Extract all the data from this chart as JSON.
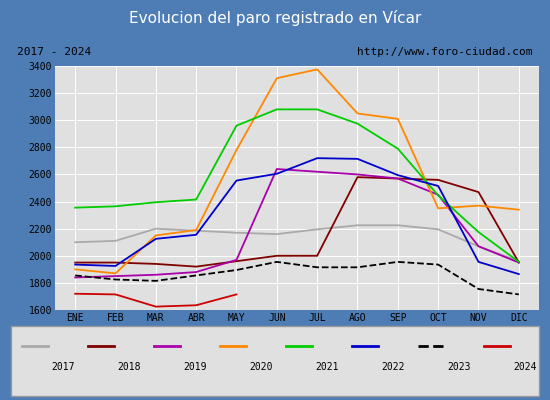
{
  "title": "Evolucion del paro registrado en Vícar",
  "subtitle_left": "2017 - 2024",
  "subtitle_right": "http://www.foro-ciudad.com",
  "x_labels": [
    "ENE",
    "FEB",
    "MAR",
    "ABR",
    "MAY",
    "JUN",
    "JUL",
    "AGO",
    "SEP",
    "OCT",
    "NOV",
    "DIC"
  ],
  "ylim": [
    1600,
    3400
  ],
  "yticks": [
    1600,
    1800,
    2000,
    2200,
    2400,
    2600,
    2800,
    3000,
    3200,
    3400
  ],
  "series": {
    "2017": {
      "color": "#aaaaaa",
      "linestyle": "-",
      "data": [
        2100,
        2110,
        2200,
        2185,
        2170,
        2160,
        2195,
        2225,
        2225,
        2195,
        2070,
        1960
      ]
    },
    "2018": {
      "color": "#800000",
      "linestyle": "-",
      "data": [
        1950,
        1950,
        1940,
        1920,
        1960,
        2000,
        2000,
        2580,
        2570,
        2560,
        2470,
        1950
      ]
    },
    "2019": {
      "color": "#aa00aa",
      "linestyle": "-",
      "data": [
        1840,
        1850,
        1860,
        1880,
        1970,
        2640,
        2620,
        2600,
        2570,
        2450,
        2070,
        1950
      ]
    },
    "2020": {
      "color": "#ff8800",
      "linestyle": "-",
      "data": [
        1900,
        1870,
        2150,
        2190,
        2780,
        3310,
        3375,
        3050,
        3010,
        2350,
        2370,
        2340
      ]
    },
    "2021": {
      "color": "#00cc00",
      "linestyle": "-",
      "data": [
        2355,
        2365,
        2395,
        2415,
        2960,
        3080,
        3080,
        2975,
        2790,
        2445,
        2175,
        1955
      ]
    },
    "2022": {
      "color": "#0000cc",
      "linestyle": "-",
      "data": [
        1935,
        1925,
        2125,
        2155,
        2555,
        2605,
        2720,
        2715,
        2595,
        2515,
        1955,
        1865
      ]
    },
    "2023": {
      "color": "#000000",
      "linestyle": "--",
      "data": [
        1855,
        1825,
        1815,
        1855,
        1895,
        1955,
        1915,
        1915,
        1955,
        1935,
        1755,
        1715
      ]
    },
    "2024": {
      "color": "#cc0000",
      "linestyle": "-",
      "data": [
        1720,
        1715,
        1625,
        1635,
        1715,
        null,
        null,
        null,
        null,
        null,
        null,
        null
      ]
    }
  },
  "fig_width": 5.5,
  "fig_height": 4.0,
  "dpi": 100,
  "title_bg_color": "#4e7db5",
  "title_text_color": "#ffffff",
  "title_fontsize": 11,
  "header_bg_color": "#d4d4d4",
  "header_fontsize": 8,
  "plot_bg_color": "#e0e0e0",
  "grid_color": "#ffffff",
  "legend_bg_color": "#e0e0e0",
  "legend_border_color": "#999999",
  "outer_bg_color": "#4e7db5"
}
